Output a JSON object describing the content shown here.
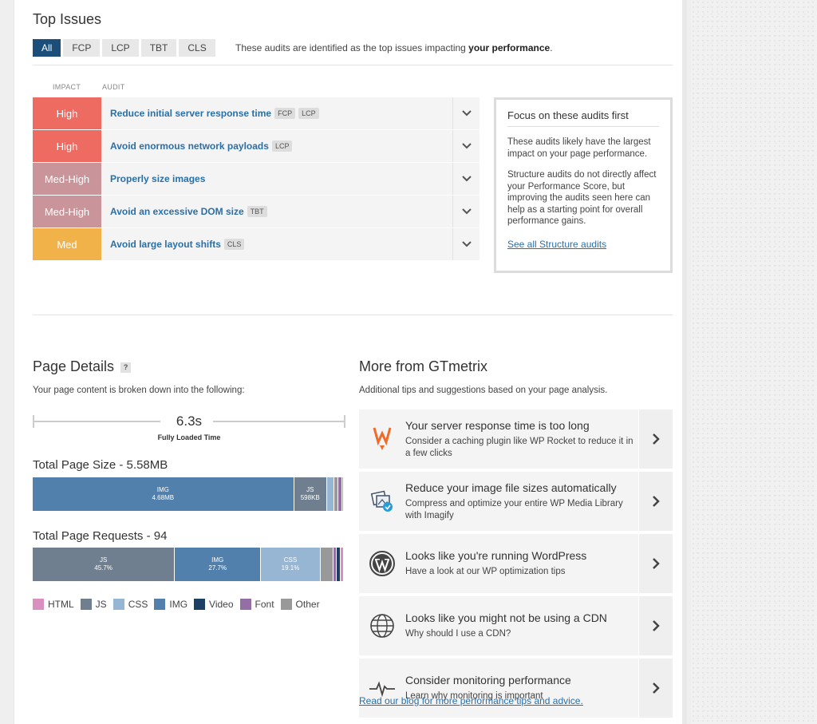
{
  "top_issues": {
    "title": "Top Issues",
    "tabs": [
      "All",
      "FCP",
      "LCP",
      "TBT",
      "CLS"
    ],
    "note_prefix": "These audits are identified as the top issues impacting ",
    "note_bold": "your performance",
    "note_suffix": ".",
    "col_impact": "IMPACT",
    "col_audit": "AUDIT",
    "audits": [
      {
        "impact": "High",
        "title": "Reduce initial server response time",
        "tags": [
          "FCP",
          "LCP"
        ],
        "color": "#ee6b62"
      },
      {
        "impact": "High",
        "title": "Avoid enormous network payloads",
        "tags": [
          "LCP"
        ],
        "color": "#ee6b62"
      },
      {
        "impact": "Med-High",
        "title": "Properly size images",
        "tags": [],
        "color": "#c9959a"
      },
      {
        "impact": "Med-High",
        "title": "Avoid an excessive DOM size",
        "tags": [
          "TBT"
        ],
        "color": "#c9959a"
      },
      {
        "impact": "Med",
        "title": "Avoid large layout shifts",
        "tags": [
          "CLS"
        ],
        "color": "#f2b24a"
      }
    ],
    "focus": {
      "title": "Focus on these audits first",
      "p1": "These audits likely have the largest impact on your page performance.",
      "p2": "Structure audits do not directly affect your Performance Score, but improving the audits seen here can help as a starting point for overall performance gains.",
      "link": "See all Structure audits"
    }
  },
  "page_details": {
    "title": "Page Details",
    "help": "?",
    "subtitle": "Your page content is broken down into the following:",
    "fully_loaded_value": "6.3s",
    "fully_loaded_label": "Fully Loaded Time",
    "size_title": "Total Page Size - 5.58MB",
    "requests_title": "Total Page Requests - 94"
  },
  "chart_data": [
    {
      "type": "bar",
      "title": "Total Page Size - 5.58MB",
      "orientation": "horizontal-stacked",
      "segments": [
        {
          "name": "IMG",
          "value_label": "4.68MB",
          "percent": 84.0,
          "color": "#5080ab"
        },
        {
          "name": "JS",
          "value_label": "598KB",
          "percent": 10.6,
          "color": "#6f7f8f"
        },
        {
          "name": "CSS",
          "value_label": "",
          "percent": 2.4,
          "color": "#96b6d3"
        },
        {
          "name": "Other",
          "value_label": "",
          "percent": 1.2,
          "color": "#999999"
        },
        {
          "name": "Font",
          "value_label": "",
          "percent": 1.2,
          "color": "#946fa6"
        },
        {
          "name": "HTML",
          "value_label": "",
          "percent": 0.6,
          "color": "#d98fbf"
        }
      ]
    },
    {
      "type": "bar",
      "title": "Total Page Requests - 94",
      "orientation": "horizontal-stacked",
      "segments": [
        {
          "name": "JS",
          "value_label": "45.7%",
          "percent": 45.7,
          "color": "#6f7f8f"
        },
        {
          "name": "IMG",
          "value_label": "27.7%",
          "percent": 27.7,
          "color": "#5080ab"
        },
        {
          "name": "CSS",
          "value_label": "19.1%",
          "percent": 19.1,
          "color": "#96b6d3"
        },
        {
          "name": "Other",
          "value_label": "",
          "percent": 4.2,
          "color": "#999999"
        },
        {
          "name": "Font",
          "value_label": "",
          "percent": 1.1,
          "color": "#946fa6"
        },
        {
          "name": "Video",
          "value_label": "",
          "percent": 1.1,
          "color": "#1c3f63"
        },
        {
          "name": "HTML",
          "value_label": "",
          "percent": 1.1,
          "color": "#d98fbf"
        }
      ]
    }
  ],
  "legend": [
    {
      "label": "HTML",
      "color": "#d98fbf"
    },
    {
      "label": "JS",
      "color": "#6f7f8f"
    },
    {
      "label": "CSS",
      "color": "#96b6d3"
    },
    {
      "label": "IMG",
      "color": "#5080ab"
    },
    {
      "label": "Video",
      "color": "#1c3f63"
    },
    {
      "label": "Font",
      "color": "#946fa6"
    },
    {
      "label": "Other",
      "color": "#999999"
    }
  ],
  "more": {
    "title": "More from GTmetrix",
    "subtitle": "Additional tips and suggestions based on your page analysis.",
    "tips": [
      {
        "icon": "wp-rocket-icon",
        "title": "Your server response time is too long",
        "desc": "Consider a caching plugin like WP Rocket to reduce it in a few clicks"
      },
      {
        "icon": "imagify-icon",
        "title": "Reduce your image file sizes automatically",
        "desc": "Compress and optimize your entire WP Media Library with Imagify"
      },
      {
        "icon": "wordpress-icon",
        "title": "Looks like you're running WordPress",
        "desc": "Have a look at our WP optimization tips"
      },
      {
        "icon": "globe-icon",
        "title": "Looks like you might not be using a CDN",
        "desc": "Why should I use a CDN?"
      },
      {
        "icon": "heartbeat-icon",
        "title": "Consider monitoring performance",
        "desc": "Learn why monitoring is important"
      }
    ],
    "blog_link": "Read our blog for more performance tips and advice."
  }
}
